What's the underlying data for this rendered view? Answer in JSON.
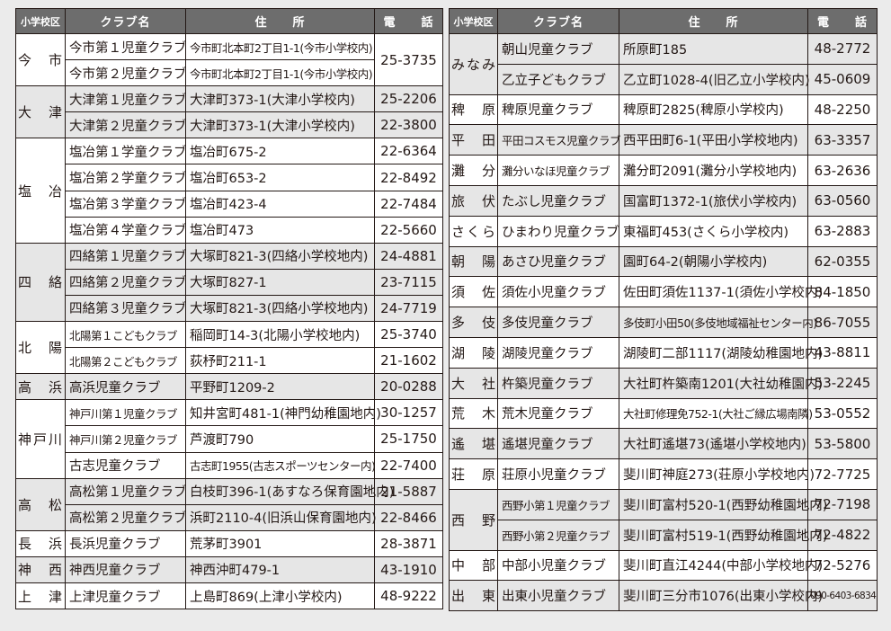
{
  "headers": {
    "school": "小学校区",
    "club": "クラブ名",
    "address": "住　　所",
    "phone": "電　　話"
  },
  "colors": {
    "header_bg": "#6d6d6d",
    "shaded_row": "#e6e6e6",
    "border": "#231815"
  },
  "left_table": [
    {
      "school": "今　市",
      "shared_phone": "25-3735",
      "clubs": [
        {
          "name": "今市第１児童クラブ",
          "address": "今市町北本町2丁目1-1(今市小学校内)"
        },
        {
          "name": "今市第２児童クラブ",
          "address": "今市町北本町2丁目1-1(今市小学校内)"
        }
      ]
    },
    {
      "school": "大　津",
      "clubs": [
        {
          "name": "大津第１児童クラブ",
          "address": "大津町373-1(大津小学校内)",
          "phone": "25-2206"
        },
        {
          "name": "大津第２児童クラブ",
          "address": "大津町373-1(大津小学校内)",
          "phone": "22-3800"
        }
      ]
    },
    {
      "school": "塩　冶",
      "clubs": [
        {
          "name": "塩冶第１学童クラブ",
          "address": "塩冶町675-2",
          "phone": "22-6364"
        },
        {
          "name": "塩冶第２学童クラブ",
          "address": "塩冶町653-2",
          "phone": "22-8492"
        },
        {
          "name": "塩冶第３学童クラブ",
          "address": "塩冶町423-4",
          "phone": "22-7484"
        },
        {
          "name": "塩冶第４学童クラブ",
          "address": "塩冶町473",
          "phone": "22-5660"
        }
      ]
    },
    {
      "school": "四　絡",
      "clubs": [
        {
          "name": "四絡第１児童クラブ",
          "address": "大塚町821-3(四絡小学校地内)",
          "phone": "24-4881"
        },
        {
          "name": "四絡第２児童クラブ",
          "address": "大塚町827-1",
          "phone": "23-7115"
        },
        {
          "name": "四絡第３児童クラブ",
          "address": "大塚町821-3(四絡小学校地内)",
          "phone": "24-7719"
        }
      ]
    },
    {
      "school": "北　陽",
      "clubs": [
        {
          "name": "北陽第１こどもクラブ",
          "address": "稲岡町14-3(北陽小学校地内)",
          "phone": "25-3740"
        },
        {
          "name": "北陽第２こどもクラブ",
          "address": "荻杼町211-1",
          "phone": "21-1602"
        }
      ]
    },
    {
      "school": "高　浜",
      "clubs": [
        {
          "name": "高浜児童クラブ",
          "address": "平野町1209-2",
          "phone": "20-0288"
        }
      ]
    },
    {
      "school": "神戸川",
      "clubs": [
        {
          "name": "神戸川第１児童クラブ",
          "address": "知井宮町481-1(神門幼稚園地内)",
          "phone": "30-1257"
        },
        {
          "name": "神戸川第２児童クラブ",
          "address": "芦渡町790",
          "phone": "25-1750"
        },
        {
          "name": "古志児童クラブ",
          "address": "古志町1955(古志スポーツセンター内)",
          "phone": "22-7400"
        }
      ]
    },
    {
      "school": "高　松",
      "clubs": [
        {
          "name": "高松第１児童クラブ",
          "address": "白枝町396-1(あすなろ保育園地内)",
          "phone": "21-5887"
        },
        {
          "name": "高松第２児童クラブ",
          "address": "浜町2110-4(旧浜山保育園地内)",
          "phone": "22-8466"
        }
      ]
    },
    {
      "school": "長　浜",
      "clubs": [
        {
          "name": "長浜児童クラブ",
          "address": "荒茅町3901",
          "phone": "28-3871"
        }
      ]
    },
    {
      "school": "神　西",
      "clubs": [
        {
          "name": "神西児童クラブ",
          "address": "神西沖町479-1",
          "phone": "43-1910"
        }
      ]
    },
    {
      "school": "上　津",
      "clubs": [
        {
          "name": "上津児童クラブ",
          "address": "上島町869(上津小学校内)",
          "phone": "48-9222"
        }
      ]
    }
  ],
  "right_table": [
    {
      "school": "みなみ",
      "clubs": [
        {
          "name": "朝山児童クラブ",
          "address": "所原町185",
          "phone": "48-2772"
        },
        {
          "name": "乙立子どもクラブ",
          "address": "乙立町1028-4(旧乙立小学校内)",
          "phone": "45-0609"
        }
      ]
    },
    {
      "school": "稗　原",
      "clubs": [
        {
          "name": "稗原児童クラブ",
          "address": "稗原町2825(稗原小学校内)",
          "phone": "48-2250"
        }
      ]
    },
    {
      "school": "平　田",
      "clubs": [
        {
          "name": "平田コスモス児童クラブ",
          "address": "西平田町6-1(平田小学校地内)",
          "phone": "63-3357"
        }
      ]
    },
    {
      "school": "灘　分",
      "clubs": [
        {
          "name": "灘分いなほ児童クラブ",
          "address": "灘分町2091(灘分小学校地内)",
          "phone": "63-2636"
        }
      ]
    },
    {
      "school": "旅　伏",
      "clubs": [
        {
          "name": "たぶし児童クラブ",
          "address": "国富町1372-1(旅伏小学校内)",
          "phone": "63-0560"
        }
      ]
    },
    {
      "school": "さくら",
      "clubs": [
        {
          "name": "ひまわり児童クラブ",
          "address": "東福町453(さくら小学校内)",
          "phone": "63-2883"
        }
      ]
    },
    {
      "school": "朝　陽",
      "clubs": [
        {
          "name": "あさひ児童クラブ",
          "address": "園町64-2(朝陽小学校内)",
          "phone": "62-0355"
        }
      ]
    },
    {
      "school": "須　佐",
      "clubs": [
        {
          "name": "須佐小児童クラブ",
          "address": "佐田町須佐1137-1(須佐小学校内)",
          "phone": "84-1850"
        }
      ]
    },
    {
      "school": "多　伎",
      "clubs": [
        {
          "name": "多伎児童クラブ",
          "address": "多伎町小田50(多伎地域福祉センター内)",
          "phone": "86-7055"
        }
      ]
    },
    {
      "school": "湖　陵",
      "clubs": [
        {
          "name": "湖陵児童クラブ",
          "address": "湖陵町二部1117(湖陵幼稚園地内)",
          "phone": "43-8811"
        }
      ]
    },
    {
      "school": "大　社",
      "clubs": [
        {
          "name": "杵築児童クラブ",
          "address": "大社町杵築南1201(大社幼稚園内)",
          "phone": "53-2245"
        }
      ]
    },
    {
      "school": "荒　木",
      "clubs": [
        {
          "name": "荒木児童クラブ",
          "address": "大社町修理免752-1(大社ご縁広場南隣)",
          "phone": "53-0552"
        }
      ]
    },
    {
      "school": "遙　堪",
      "clubs": [
        {
          "name": "遙堪児童クラブ",
          "address": "大社町遙堪73(遙堪小学校地内)",
          "phone": "53-5800"
        }
      ]
    },
    {
      "school": "荘　原",
      "clubs": [
        {
          "name": "荘原小児童クラブ",
          "address": "斐川町神庭273(荘原小学校地内)",
          "phone": "72-7725"
        }
      ]
    },
    {
      "school": "西　野",
      "clubs": [
        {
          "name": "西野小第１児童クラブ",
          "address": "斐川町富村520-1(西野幼稚園地内)",
          "phone": "72-7198"
        },
        {
          "name": "西野小第２児童クラブ",
          "address": "斐川町富村519-1(西野幼稚園地内)",
          "phone": "72-4822"
        }
      ]
    },
    {
      "school": "中　部",
      "clubs": [
        {
          "name": "中部小児童クラブ",
          "address": "斐川町直江4244(中部小学校地内)",
          "phone": "72-5276"
        }
      ]
    },
    {
      "school": "出　東",
      "clubs": [
        {
          "name": "出東小児童クラブ",
          "address": "斐川町三分市1076(出東小学校内)",
          "phone": "090-6403-6834"
        }
      ]
    }
  ]
}
